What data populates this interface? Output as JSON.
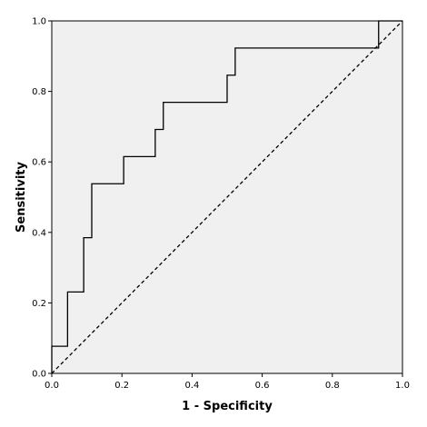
{
  "chart_data": {
    "type": "line",
    "title": "",
    "xlabel": "1 - Specificity",
    "ylabel": "Sensitivity",
    "xlim": [
      0,
      1
    ],
    "ylim": [
      0,
      1
    ],
    "x_ticks": [
      "0.0",
      "0.2",
      "0.4",
      "0.6",
      "0.8",
      "1.0"
    ],
    "y_ticks": [
      "0.0",
      "0.2",
      "0.4",
      "0.6",
      "0.8",
      "1.0"
    ],
    "grid": false,
    "legend": "none",
    "background_color": "#f0f0f0",
    "series": [
      {
        "style": "solid",
        "color": "#000000",
        "x": [
          0.0,
          0.0,
          0.045,
          0.045,
          0.091,
          0.091,
          0.114,
          0.114,
          0.205,
          0.205,
          0.295,
          0.295,
          0.318,
          0.318,
          0.5,
          0.5,
          0.523,
          0.523,
          0.932,
          0.932,
          1.0
        ],
        "y": [
          0.0,
          0.077,
          0.077,
          0.231,
          0.231,
          0.385,
          0.385,
          0.538,
          0.538,
          0.615,
          0.615,
          0.692,
          0.692,
          0.769,
          0.769,
          0.846,
          0.846,
          0.923,
          0.923,
          1.0,
          1.0
        ]
      },
      {
        "style": "dashed",
        "color": "#000000",
        "x": [
          0,
          1
        ],
        "y": [
          0,
          1
        ]
      }
    ]
  }
}
